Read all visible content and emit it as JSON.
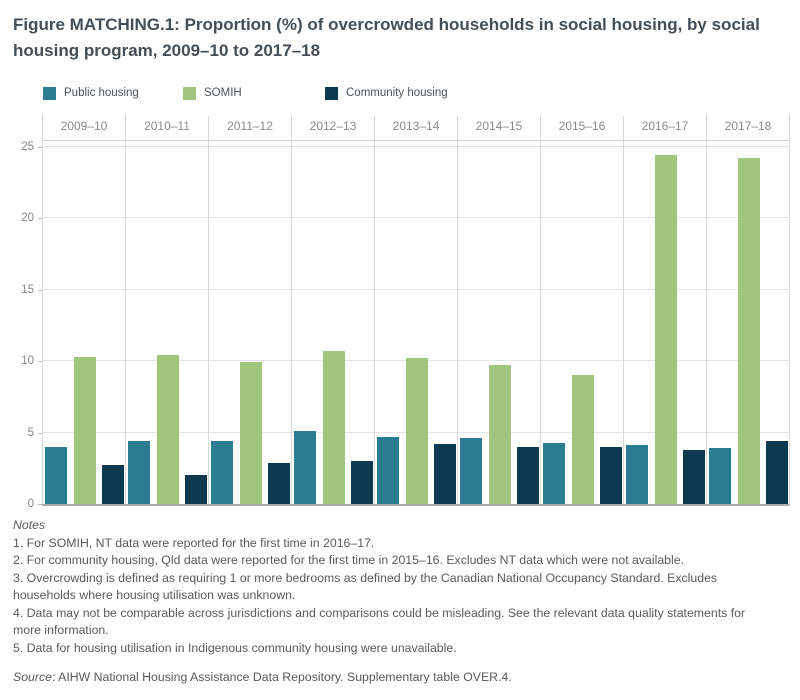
{
  "title": "Figure MATCHING.1: Proportion (%) of overcrowded households in social housing, by social housing program, 2009–10 to 2017–18",
  "legend": [
    {
      "label": "Public housing",
      "color": "#2B7C92"
    },
    {
      "label": "SOMIH",
      "color": "#A0C57C"
    },
    {
      "label": "Community housing",
      "color": "#0D3A50"
    }
  ],
  "chart_data": {
    "type": "bar",
    "title": "Figure MATCHING.1: Proportion (%) of overcrowded households in social housing, by social housing program, 2009–10 to 2017–18",
    "categories": [
      "2009–10",
      "2010–11",
      "2011–12",
      "2012–13",
      "2013–14",
      "2014–15",
      "2015–16",
      "2016–17",
      "2017–18"
    ],
    "series": [
      {
        "name": "Public housing",
        "color": "#2B7C92",
        "values": [
          4.0,
          4.4,
          4.4,
          5.1,
          4.7,
          4.6,
          4.3,
          4.1,
          3.9
        ]
      },
      {
        "name": "SOMIH",
        "color": "#A0C57C",
        "values": [
          10.3,
          10.4,
          9.9,
          10.7,
          10.2,
          9.7,
          9.0,
          24.4,
          24.2
        ]
      },
      {
        "name": "Community housing",
        "color": "#0D3A50",
        "values": [
          2.7,
          2.0,
          2.9,
          3.0,
          4.2,
          4.0,
          4.0,
          3.8,
          4.4
        ]
      }
    ],
    "xlabel": "",
    "ylabel": "",
    "ylim": [
      0,
      25
    ],
    "yticks": [
      0,
      5,
      10,
      15,
      20,
      25
    ],
    "grid": true,
    "legend_position": "top",
    "category_label_position": "top"
  },
  "notes": {
    "heading": "Notes",
    "items": [
      [
        "1. For SOMIH, NT data were reported for the first time in 2016–17."
      ],
      [
        "2. For community housing, Qld data were reported for the first time in 2015–16. Excludes NT data which were not available."
      ],
      [
        "3. Overcrowding is defined as requiring 1 or more bedrooms as defined by the Canadian National Occupancy Standard. Excludes",
        "households where housing utilisation was unknown."
      ],
      [
        "4. Data may not be comparable across jurisdictions and comparisons could be misleading. See the relevant data quality statements for",
        "more information."
      ],
      [
        "5. Data for housing utilisation in Indigenous community housing were unavailable."
      ]
    ]
  },
  "source": {
    "prefix": "Source",
    "text": ": AIHW National Housing Assistance Data Repository. Supplementary table OVER.4."
  }
}
